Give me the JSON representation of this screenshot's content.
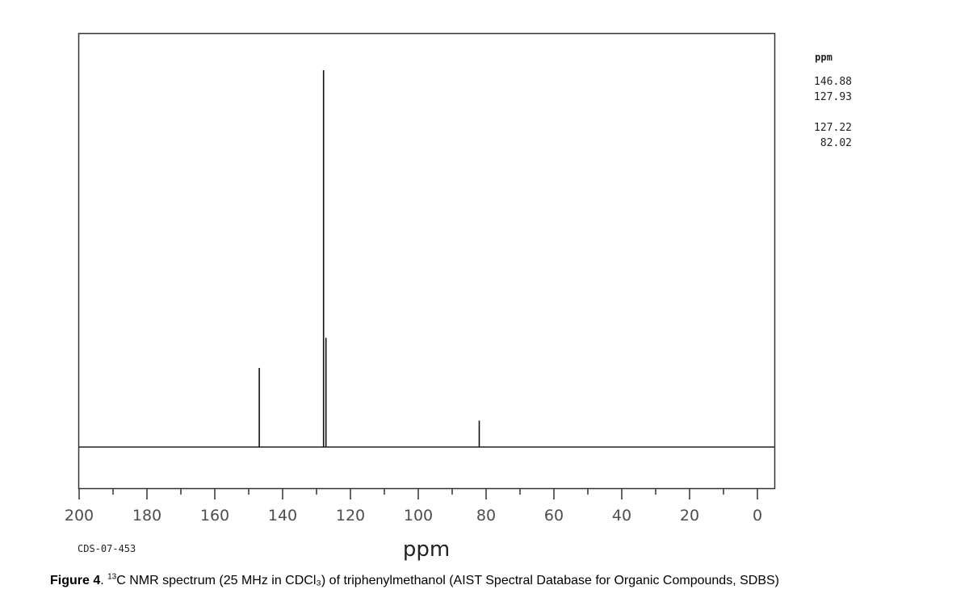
{
  "chart_data": {
    "type": "line",
    "title": "",
    "xlabel": "ppm",
    "ylabel": "",
    "xlim": [
      200,
      0
    ],
    "x_reversed": true,
    "x_ticks": [
      200,
      180,
      160,
      140,
      120,
      100,
      80,
      60,
      40,
      20,
      0
    ],
    "x_tick_labels": [
      "200",
      "180",
      "160",
      "140",
      "120",
      "100",
      "80",
      "60",
      "40",
      "20",
      "0"
    ],
    "grid": false,
    "series": [
      {
        "peaks": [
          {
            "ppm": 146.88,
            "intensity": 0.21
          },
          {
            "ppm": 127.93,
            "intensity": 1.0
          },
          {
            "ppm": 127.22,
            "intensity": 0.29
          },
          {
            "ppm": 82.02,
            "intensity": 0.07
          }
        ]
      }
    ],
    "annotation_code": "CDS-07-453"
  },
  "peak_list": {
    "header": "ppm",
    "group1": [
      "146.88",
      "127.93"
    ],
    "group2": [
      "127.22",
      "82.02"
    ]
  },
  "caption": {
    "figure_label": "Figure 4",
    "after_label": ". ",
    "superscript": "13",
    "text": "C NMR spectrum (25 MHz in CDCl₃) of triphenylmethanol (AIST Spectral Database for Organic Compounds, SDBS)"
  }
}
